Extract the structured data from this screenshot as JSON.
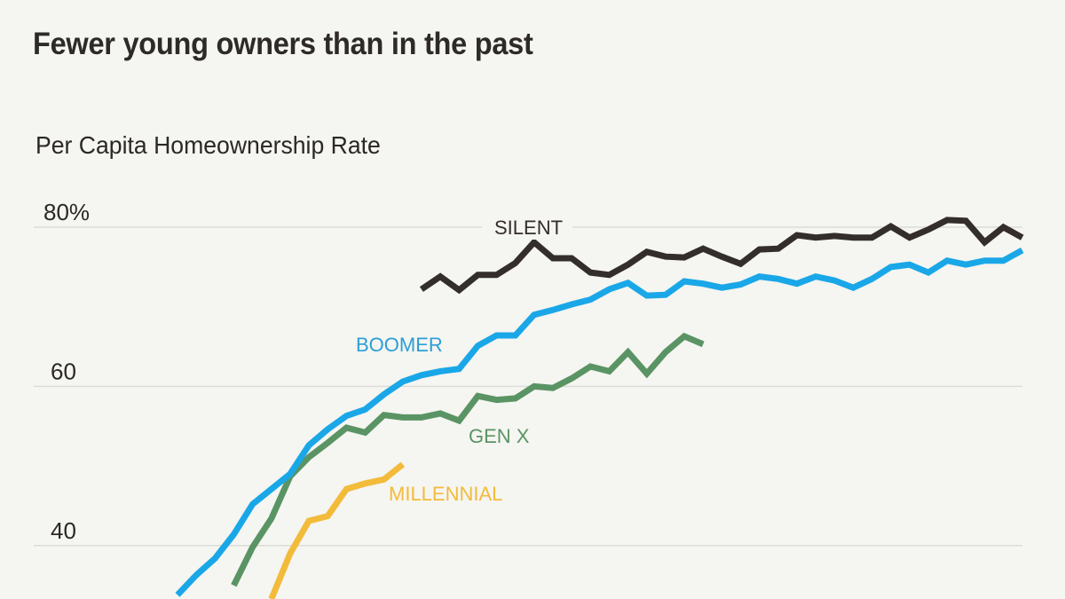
{
  "header": {
    "title": "Fewer young owners than in the past",
    "subtitle": "Per Capita Homeownership Rate"
  },
  "chart_data": {
    "type": "line",
    "title": "Fewer young owners than in the past",
    "ylabel": "Per Capita Homeownership Rate",
    "xlabel": "",
    "ylim": [
      30,
      85
    ],
    "x_index_range": [
      0,
      45
    ],
    "yticks": [
      {
        "value": 80,
        "label": "80%"
      },
      {
        "value": 60,
        "label": "60"
      },
      {
        "value": 40,
        "label": "40"
      }
    ],
    "grid": true,
    "legend": "inline-labels",
    "series": [
      {
        "name": "SILENT",
        "color": "#332e2c",
        "start_index": 13,
        "values": [
          72.2,
          73.8,
          72.1,
          74.0,
          74.0,
          75.5,
          78.1,
          76.1,
          76.1,
          74.3,
          74.0,
          75.3,
          76.9,
          76.3,
          76.2,
          77.3,
          76.3,
          75.4,
          77.2,
          77.3,
          79.0,
          78.7,
          78.9,
          78.7,
          78.7,
          80.1,
          78.7,
          79.7,
          80.9,
          80.8,
          78.1,
          80.0,
          78.7
        ]
      },
      {
        "name": "BOOMER",
        "color": "#1aa7e8",
        "label_color": "#2a9fd6",
        "start_index": 0,
        "values": [
          33.8,
          36.3,
          38.4,
          41.4,
          45.2,
          47.1,
          49.0,
          52.6,
          54.6,
          56.3,
          57.1,
          59.0,
          60.6,
          61.4,
          61.9,
          62.2,
          65.1,
          66.4,
          66.4,
          69.0,
          69.6,
          70.3,
          70.9,
          72.2,
          73.0,
          71.4,
          71.5,
          73.2,
          72.9,
          72.4,
          72.8,
          73.8,
          73.5,
          72.9,
          73.8,
          73.3,
          72.4,
          73.5,
          75.0,
          75.3,
          74.3,
          75.8,
          75.3,
          75.8,
          75.8,
          77.1
        ]
      },
      {
        "name": "GEN X",
        "color": "#5a9464",
        "start_index": 3,
        "values": [
          35.0,
          39.8,
          43.4,
          48.7,
          51.1,
          52.9,
          54.8,
          54.2,
          56.4,
          56.1,
          56.1,
          56.6,
          55.7,
          58.8,
          58.3,
          58.5,
          60.0,
          59.8,
          61.0,
          62.5,
          61.9,
          64.3,
          61.6,
          64.3,
          66.3,
          65.3
        ]
      },
      {
        "name": "MILLENNIAL",
        "color": "#f2bb3a",
        "start_index": 5,
        "values": [
          33.3,
          39.0,
          43.1,
          43.7,
          47.1,
          47.8,
          48.3,
          50.2
        ]
      }
    ]
  }
}
